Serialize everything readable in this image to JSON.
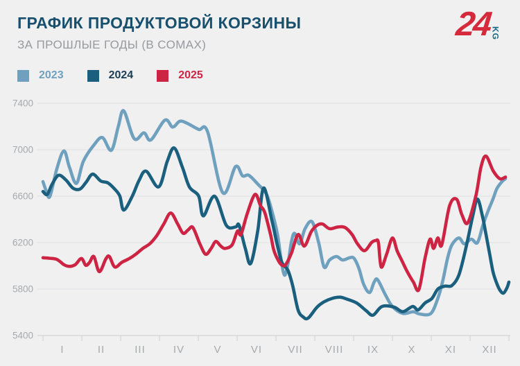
{
  "header": {
    "title": "ГРАФИК ПРОДУКТОВОЙ КОРЗИНЫ",
    "subtitle": "ЗА ПРОШЛЫЕ ГОДЫ (В СОМАХ)",
    "logo": {
      "number": "24",
      "suffix": "KG"
    }
  },
  "colors": {
    "background": "#F0F0F1",
    "title": "#174F6D",
    "subtitle": "#97999C",
    "axis_text": "#A6A9AB",
    "grid": "#E3E4E6",
    "axis_line": "#D2D4D6",
    "logo_red": "#D52A3C",
    "logo_kg": "#156A88"
  },
  "legend": [
    {
      "label": "2023",
      "color": "#6FA1BF",
      "text_color": "#6FA1BF"
    },
    {
      "label": "2024",
      "color": "#1A5F7D",
      "text_color": "#1B3C52"
    },
    {
      "label": "2025",
      "color": "#CE2444",
      "text_color": "#CE2444"
    }
  ],
  "chart_data": {
    "type": "line",
    "title": "ГРАФИК ПРОДУКТОВОЙ КОРЗИНЫ",
    "subtitle": "ЗА ПРОШЛЫЕ ГОДЫ (В СОМАХ)",
    "unit": "сом",
    "grid": true,
    "legend_position": "top-left",
    "x_axis": {
      "labels": [
        "I",
        "II",
        "III",
        "IV",
        "V",
        "VI",
        "VII",
        "VIII",
        "IX",
        "X",
        "XI",
        "XII"
      ],
      "range": [
        0,
        12
      ]
    },
    "y_axis": {
      "ticks": [
        7400,
        7000,
        6600,
        6200,
        5800,
        5400
      ],
      "range": [
        5400,
        7400
      ]
    },
    "series": [
      {
        "name": "2023",
        "color": "#6FA1BF",
        "points": [
          [
            0,
            6725
          ],
          [
            0.09,
            6640
          ],
          [
            0.18,
            6600
          ],
          [
            0.36,
            6840
          ],
          [
            0.54,
            6990
          ],
          [
            0.68,
            6850
          ],
          [
            0.86,
            6710
          ],
          [
            1.04,
            6900
          ],
          [
            1.31,
            7040
          ],
          [
            1.53,
            7105
          ],
          [
            1.76,
            6995
          ],
          [
            1.94,
            7200
          ],
          [
            2.08,
            7335
          ],
          [
            2.35,
            7095
          ],
          [
            2.6,
            7145
          ],
          [
            2.78,
            7085
          ],
          [
            3.14,
            7255
          ],
          [
            3.34,
            7195
          ],
          [
            3.52,
            7245
          ],
          [
            3.7,
            7230
          ],
          [
            4.01,
            7175
          ],
          [
            4.24,
            7155
          ],
          [
            4.63,
            6630
          ],
          [
            4.96,
            6855
          ],
          [
            5.14,
            6775
          ],
          [
            5.3,
            6780
          ],
          [
            5.53,
            6705
          ],
          [
            5.75,
            6620
          ],
          [
            5.89,
            6480
          ],
          [
            6.04,
            6270
          ],
          [
            6.13,
            6060
          ],
          [
            6.22,
            5920
          ],
          [
            6.31,
            6020
          ],
          [
            6.4,
            6210
          ],
          [
            6.48,
            6280
          ],
          [
            6.61,
            6190
          ],
          [
            6.75,
            6320
          ],
          [
            6.93,
            6380
          ],
          [
            7.1,
            6200
          ],
          [
            7.24,
            5990
          ],
          [
            7.38,
            6050
          ],
          [
            7.56,
            6080
          ],
          [
            7.72,
            6050
          ],
          [
            7.9,
            6070
          ],
          [
            8.01,
            6065
          ],
          [
            8.14,
            5975
          ],
          [
            8.26,
            5840
          ],
          [
            8.41,
            5770
          ],
          [
            8.53,
            5860
          ],
          [
            8.62,
            5880
          ],
          [
            8.82,
            5750
          ],
          [
            9,
            5650
          ],
          [
            9.27,
            5590
          ],
          [
            9.54,
            5605
          ],
          [
            9.7,
            5585
          ],
          [
            9.99,
            5590
          ],
          [
            10.17,
            5720
          ],
          [
            10.29,
            5860
          ],
          [
            10.42,
            6065
          ],
          [
            10.53,
            6180
          ],
          [
            10.71,
            6240
          ],
          [
            10.85,
            6190
          ],
          [
            11.03,
            6230
          ],
          [
            11.19,
            6200
          ],
          [
            11.33,
            6350
          ],
          [
            11.46,
            6470
          ],
          [
            11.59,
            6575
          ],
          [
            11.69,
            6665
          ],
          [
            11.82,
            6725
          ],
          [
            11.91,
            6750
          ]
        ]
      },
      {
        "name": "2024",
        "color": "#1A5F7D",
        "points": [
          [
            0,
            6640
          ],
          [
            0.11,
            6615
          ],
          [
            0.23,
            6700
          ],
          [
            0.4,
            6780
          ],
          [
            0.59,
            6740
          ],
          [
            0.77,
            6670
          ],
          [
            0.95,
            6660
          ],
          [
            1.11,
            6720
          ],
          [
            1.28,
            6790
          ],
          [
            1.49,
            6730
          ],
          [
            1.67,
            6715
          ],
          [
            1.85,
            6660
          ],
          [
            1.98,
            6600
          ],
          [
            2.08,
            6480
          ],
          [
            2.3,
            6600
          ],
          [
            2.48,
            6740
          ],
          [
            2.66,
            6815
          ],
          [
            2.98,
            6680
          ],
          [
            3.2,
            6900
          ],
          [
            3.38,
            7015
          ],
          [
            3.59,
            6850
          ],
          [
            3.77,
            6680
          ],
          [
            4.01,
            6600
          ],
          [
            4.13,
            6430
          ],
          [
            4.42,
            6600
          ],
          [
            4.72,
            6350
          ],
          [
            4.96,
            6335
          ],
          [
            5.05,
            6350
          ],
          [
            5.21,
            6150
          ],
          [
            5.35,
            6020
          ],
          [
            5.53,
            6300
          ],
          [
            5.68,
            6670
          ],
          [
            5.89,
            6400
          ],
          [
            6.02,
            6200
          ],
          [
            6.13,
            6050
          ],
          [
            6.2,
            6005
          ],
          [
            6.31,
            5960
          ],
          [
            6.43,
            5830
          ],
          [
            6.57,
            5620
          ],
          [
            6.7,
            5560
          ],
          [
            6.83,
            5550
          ],
          [
            7.06,
            5645
          ],
          [
            7.24,
            5690
          ],
          [
            7.45,
            5720
          ],
          [
            7.65,
            5730
          ],
          [
            7.81,
            5715
          ],
          [
            8.08,
            5680
          ],
          [
            8.32,
            5615
          ],
          [
            8.5,
            5575
          ],
          [
            8.73,
            5650
          ],
          [
            9.04,
            5645
          ],
          [
            9.27,
            5605
          ],
          [
            9.52,
            5650
          ],
          [
            9.66,
            5620
          ],
          [
            9.84,
            5680
          ],
          [
            10.02,
            5720
          ],
          [
            10.17,
            5800
          ],
          [
            10.35,
            5825
          ],
          [
            10.53,
            5830
          ],
          [
            10.71,
            5920
          ],
          [
            10.89,
            6150
          ],
          [
            11.07,
            6430
          ],
          [
            11.19,
            6575
          ],
          [
            11.32,
            6425
          ],
          [
            11.41,
            6270
          ],
          [
            11.5,
            6110
          ],
          [
            11.59,
            5950
          ],
          [
            11.68,
            5855
          ],
          [
            11.77,
            5790
          ],
          [
            11.86,
            5765
          ],
          [
            11.95,
            5810
          ],
          [
            12,
            5860
          ]
        ]
      },
      {
        "name": "2025",
        "color": "#CE2444",
        "points": [
          [
            0,
            6070
          ],
          [
            0.18,
            6065
          ],
          [
            0.36,
            6055
          ],
          [
            0.54,
            6010
          ],
          [
            0.68,
            5995
          ],
          [
            0.83,
            6010
          ],
          [
            0.99,
            6063
          ],
          [
            1.1,
            6005
          ],
          [
            1.2,
            6030
          ],
          [
            1.31,
            6080
          ],
          [
            1.45,
            5950
          ],
          [
            1.62,
            6060
          ],
          [
            1.71,
            6080
          ],
          [
            1.85,
            5990
          ],
          [
            2.03,
            6030
          ],
          [
            2.21,
            6060
          ],
          [
            2.39,
            6100
          ],
          [
            2.57,
            6150
          ],
          [
            2.75,
            6190
          ],
          [
            2.93,
            6260
          ],
          [
            3.11,
            6360
          ],
          [
            3.29,
            6455
          ],
          [
            3.47,
            6360
          ],
          [
            3.61,
            6280
          ],
          [
            3.74,
            6310
          ],
          [
            3.86,
            6330
          ],
          [
            4.04,
            6190
          ],
          [
            4.19,
            6100
          ],
          [
            4.33,
            6150
          ],
          [
            4.45,
            6210
          ],
          [
            4.58,
            6170
          ],
          [
            4.69,
            6150
          ],
          [
            4.87,
            6180
          ],
          [
            5.01,
            6300
          ],
          [
            5.1,
            6270
          ],
          [
            5.26,
            6450
          ],
          [
            5.46,
            6615
          ],
          [
            5.6,
            6520
          ],
          [
            5.71,
            6460
          ],
          [
            5.86,
            6270
          ],
          [
            5.95,
            6130
          ],
          [
            6.07,
            6040
          ],
          [
            6.16,
            6005
          ],
          [
            6.25,
            6010
          ],
          [
            6.4,
            6110
          ],
          [
            6.57,
            6270
          ],
          [
            6.73,
            6170
          ],
          [
            6.91,
            6295
          ],
          [
            7.06,
            6350
          ],
          [
            7.2,
            6360
          ],
          [
            7.38,
            6320
          ],
          [
            7.6,
            6335
          ],
          [
            7.78,
            6330
          ],
          [
            7.96,
            6270
          ],
          [
            8.1,
            6190
          ],
          [
            8.28,
            6130
          ],
          [
            8.46,
            6200
          ],
          [
            8.57,
            6218
          ],
          [
            8.64,
            6200
          ],
          [
            8.71,
            5990
          ],
          [
            8.85,
            6100
          ],
          [
            9,
            6240
          ],
          [
            9.12,
            6130
          ],
          [
            9.25,
            6040
          ],
          [
            9.39,
            5945
          ],
          [
            9.54,
            5860
          ],
          [
            9.68,
            5795
          ],
          [
            9.84,
            6065
          ],
          [
            9.97,
            6230
          ],
          [
            10.06,
            6150
          ],
          [
            10.17,
            6240
          ],
          [
            10.27,
            6180
          ],
          [
            10.47,
            6515
          ],
          [
            10.65,
            6575
          ],
          [
            10.79,
            6440
          ],
          [
            10.94,
            6370
          ],
          [
            11.15,
            6605
          ],
          [
            11.28,
            6850
          ],
          [
            11.41,
            6945
          ],
          [
            11.6,
            6815
          ],
          [
            11.77,
            6750
          ],
          [
            11.91,
            6765
          ]
        ]
      }
    ]
  }
}
